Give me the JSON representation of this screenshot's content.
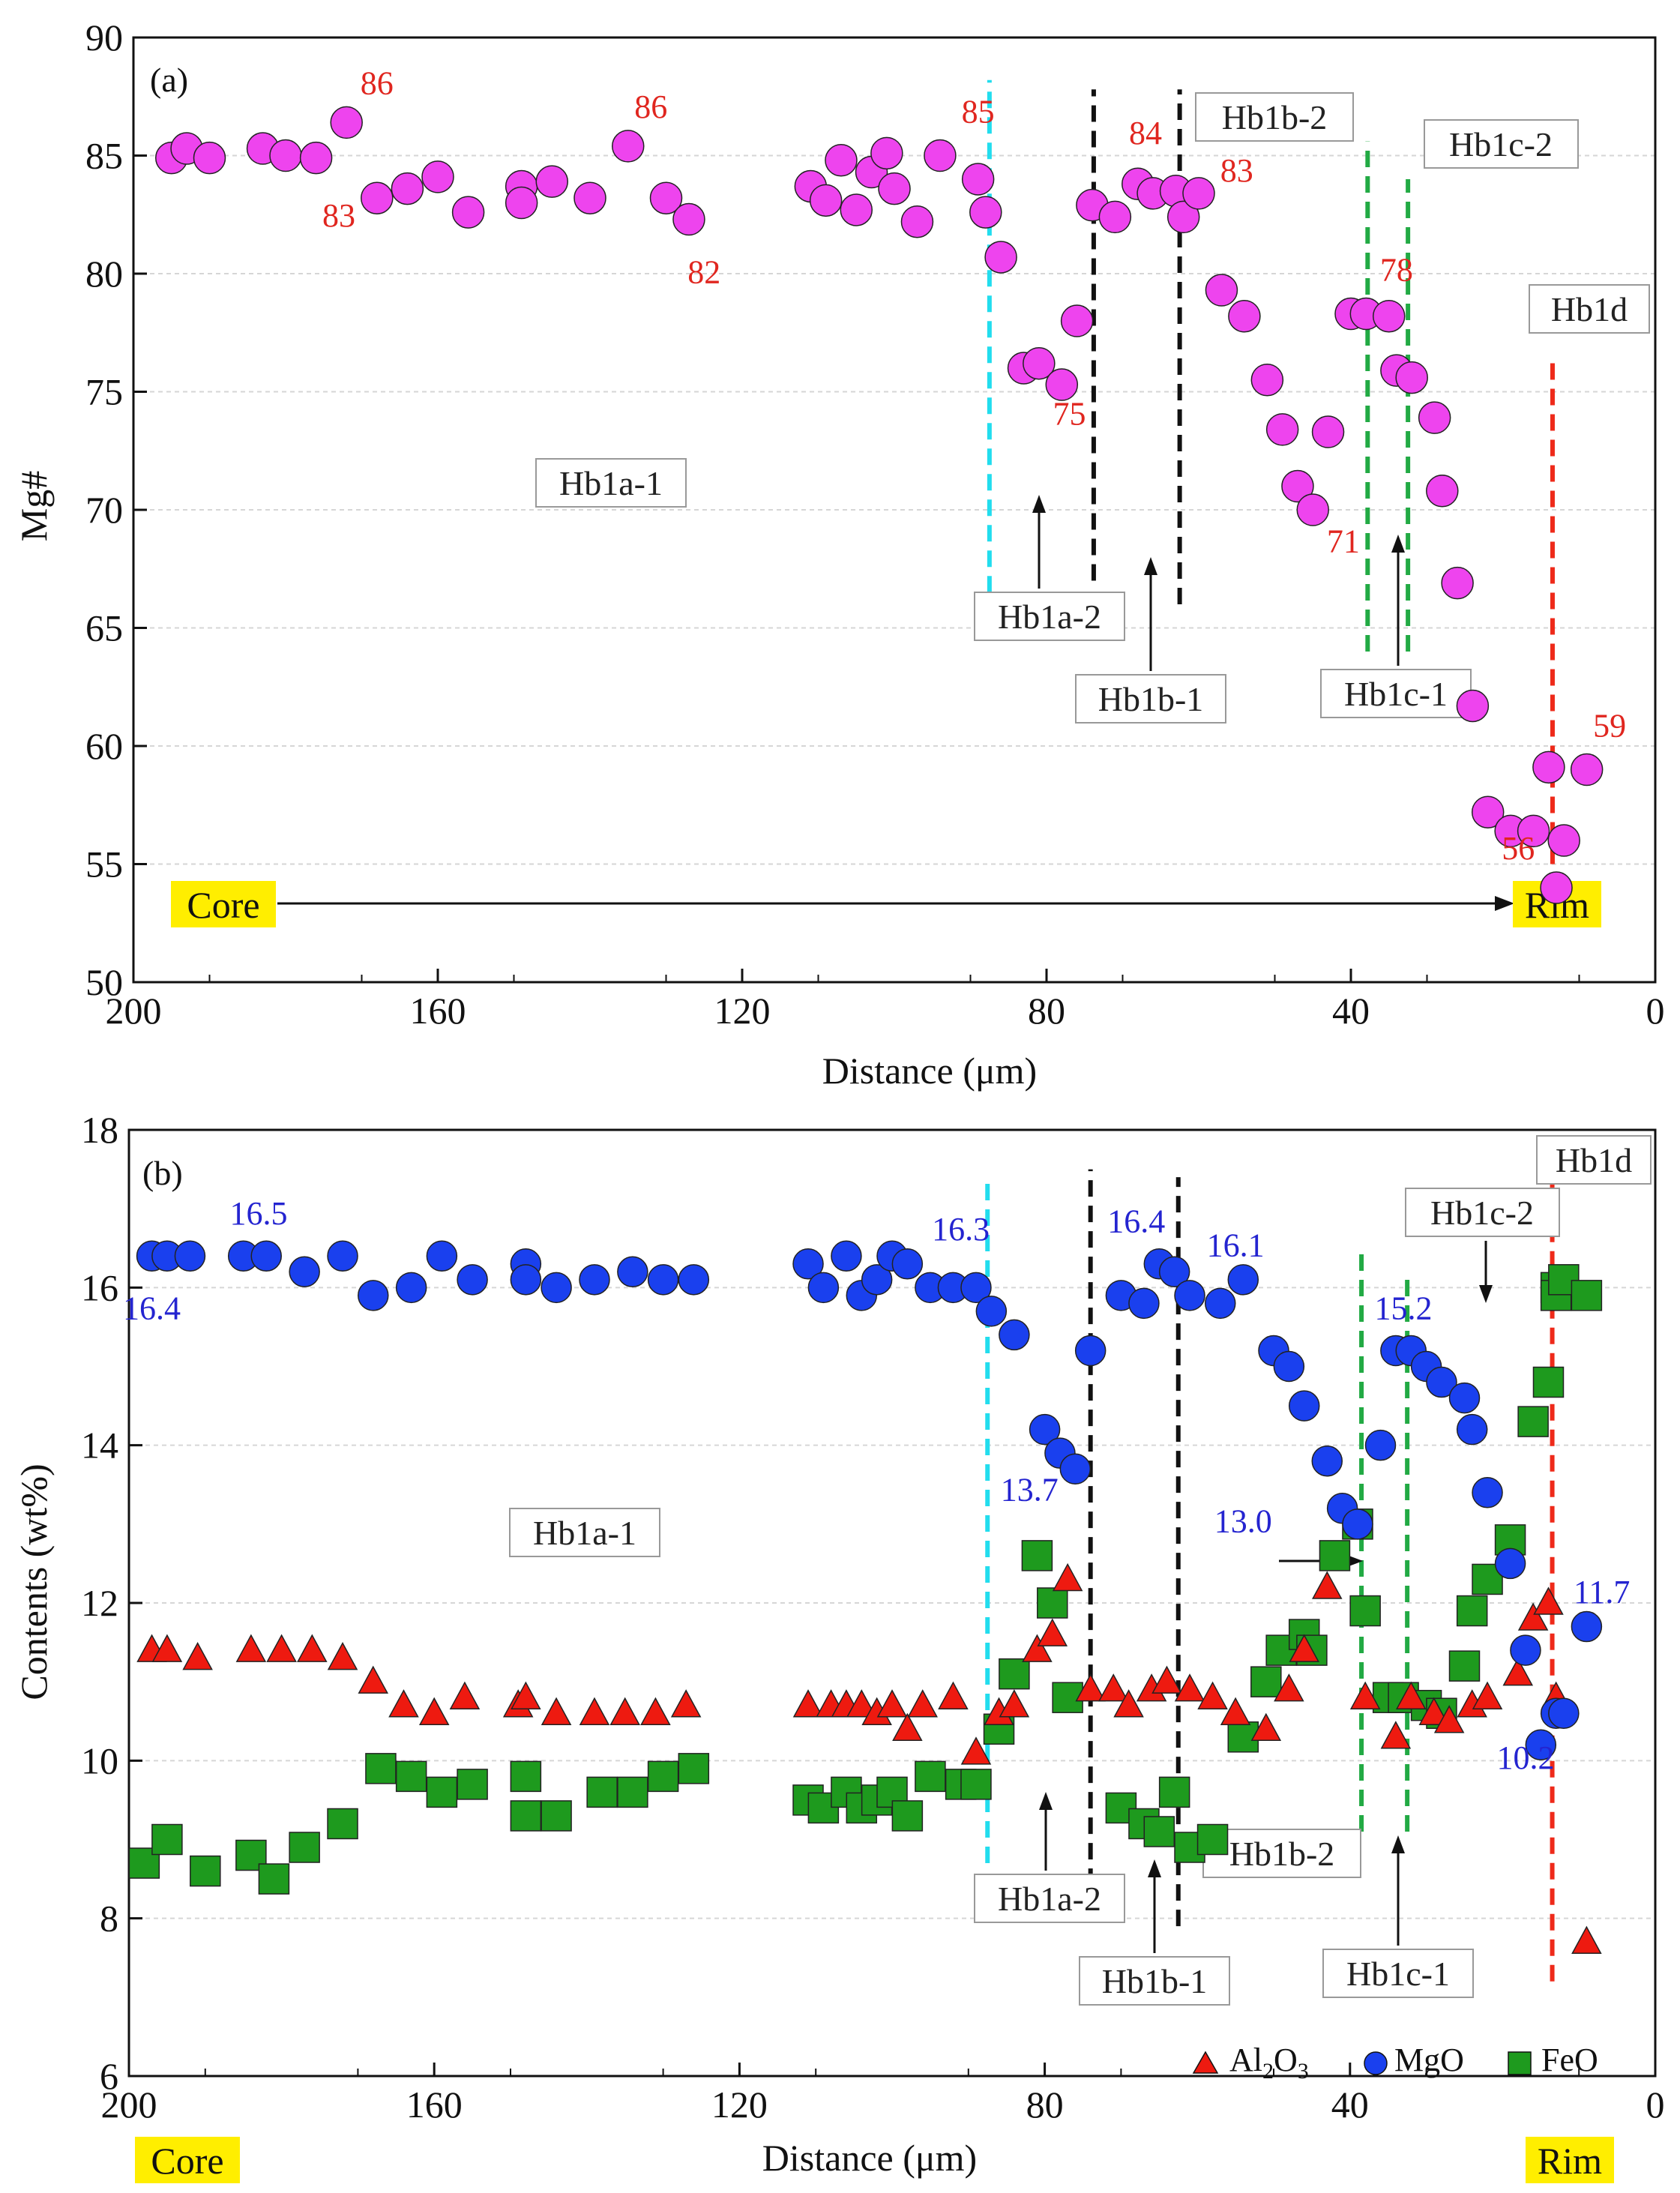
{
  "colors": {
    "mg": "#ee44ee",
    "mgo": "#1a40ee",
    "al2o3": "#ee1a10",
    "feo": "#1e9a1e",
    "highlight": "#ffee00",
    "cyan": "#22ddee",
    "black": "#111111",
    "green": "#22aa44",
    "red": "#ee2a1a",
    "grid": "#d6d6d6"
  },
  "chart_data": [
    {
      "type": "scatter",
      "panel_label": "(a)",
      "xlabel": "Distance (μm)",
      "ylabel": "Mg#",
      "xlim": [
        0,
        200
      ],
      "x_reversed": true,
      "ylim": [
        50,
        90
      ],
      "xticks": [
        200,
        160,
        120,
        80,
        40,
        0
      ],
      "yticks": [
        50,
        55,
        60,
        65,
        70,
        75,
        80,
        85,
        90
      ],
      "grid": true,
      "series": [
        {
          "name": "Mg#",
          "marker": "circle",
          "x": [
            195,
            193,
            190,
            183,
            180,
            176,
            172,
            168,
            164,
            160,
            156,
            149,
            149,
            145,
            140,
            135,
            130,
            127,
            111,
            109,
            107,
            105,
            103,
            101,
            100,
            97,
            94,
            89,
            88,
            86,
            83,
            81,
            78,
            76,
            74,
            71,
            68,
            66,
            63,
            62,
            60,
            57,
            54,
            51,
            49,
            47,
            45,
            43,
            40,
            38,
            35,
            34,
            32,
            29,
            28,
            26,
            24,
            22,
            19,
            16,
            14,
            13,
            12,
            9
          ],
          "y": [
            84.9,
            85.3,
            84.9,
            85.3,
            85.0,
            84.9,
            86.4,
            83.2,
            83.6,
            84.1,
            82.6,
            83.7,
            83.0,
            83.9,
            83.2,
            85.4,
            83.2,
            82.3,
            83.7,
            83.1,
            84.8,
            82.7,
            84.3,
            85.1,
            83.6,
            82.2,
            85.0,
            84.0,
            82.6,
            80.7,
            76.0,
            76.2,
            75.3,
            78.0,
            82.9,
            82.4,
            83.8,
            83.4,
            83.5,
            82.4,
            83.4,
            79.3,
            78.2,
            75.5,
            73.4,
            71.0,
            70.0,
            73.3,
            78.3,
            78.3,
            78.2,
            75.9,
            75.6,
            73.9,
            70.8,
            66.9,
            61.7,
            57.2,
            56.4,
            56.4,
            59.1,
            54.0,
            56.0,
            59.0
          ]
        }
      ],
      "point_labels": [
        {
          "text": "86",
          "x": 168,
          "y": 87.6
        },
        {
          "text": "83",
          "x": 173,
          "y": 82.0
        },
        {
          "text": "86",
          "x": 132,
          "y": 86.6
        },
        {
          "text": "82",
          "x": 125,
          "y": 79.6
        },
        {
          "text": "85",
          "x": 89,
          "y": 86.4
        },
        {
          "text": "84",
          "x": 67,
          "y": 85.5
        },
        {
          "text": "83",
          "x": 55,
          "y": 83.9
        },
        {
          "text": "75",
          "x": 77,
          "y": 73.6
        },
        {
          "text": "78",
          "x": 34,
          "y": 79.7
        },
        {
          "text": "71",
          "x": 41,
          "y": 68.2
        },
        {
          "text": "59",
          "x": 6,
          "y": 60.4
        },
        {
          "text": "56",
          "x": 18,
          "y": 55.2
        }
      ],
      "zone_labels": {
        "hb1a_1": "Hb1a-1",
        "hb1a_2": "Hb1a-2",
        "hb1b_1": "Hb1b-1",
        "hb1b_2": "Hb1b-2",
        "hb1c_1": "Hb1c-1",
        "hb1c_2": "Hb1c-2",
        "hb1d": "Hb1d"
      },
      "core_label": "Core",
      "rim_label": "Rim"
    },
    {
      "type": "scatter",
      "panel_label": "(b)",
      "xlabel": "Distance (μm)",
      "ylabel": "Contents (wt%)",
      "xlim": [
        0,
        200
      ],
      "x_reversed": true,
      "ylim": [
        6,
        18
      ],
      "xticks": [
        200,
        160,
        120,
        80,
        40,
        0
      ],
      "yticks": [
        6,
        8,
        10,
        12,
        14,
        16,
        18
      ],
      "grid": true,
      "series": [
        {
          "name": "Al2O3",
          "legend_label": "Al",
          "legend_sub2": "2",
          "legend_mid": "O",
          "legend_sub3": "3",
          "marker": "triangle",
          "x": [
            197,
            195,
            191,
            184,
            180,
            176,
            172,
            168,
            164,
            160,
            156,
            149,
            148,
            144,
            139,
            135,
            131,
            127,
            111,
            108,
            106,
            104,
            102,
            100,
            98,
            96,
            92,
            89,
            86,
            84,
            81,
            79,
            77,
            74,
            71,
            69,
            66,
            64,
            61,
            58,
            55,
            51,
            48,
            46,
            43,
            38,
            34,
            32,
            29,
            27,
            24,
            22,
            18,
            16,
            14,
            13,
            9
          ],
          "y": [
            11.4,
            11.4,
            11.3,
            11.4,
            11.4,
            11.4,
            11.3,
            11.0,
            10.7,
            10.6,
            10.8,
            10.7,
            10.8,
            10.6,
            10.6,
            10.6,
            10.6,
            10.7,
            10.7,
            10.7,
            10.7,
            10.7,
            10.6,
            10.7,
            10.4,
            10.7,
            10.8,
            10.1,
            10.6,
            10.7,
            11.4,
            11.6,
            12.3,
            10.9,
            10.9,
            10.7,
            10.9,
            11.0,
            10.9,
            10.8,
            10.6,
            10.4,
            10.9,
            11.4,
            12.2,
            10.8,
            10.3,
            10.8,
            10.6,
            10.5,
            10.7,
            10.8,
            11.1,
            11.8,
            12.0,
            10.8,
            7.7
          ]
        },
        {
          "name": "MgO",
          "legend_label": "MgO",
          "marker": "circle",
          "x": [
            197,
            195,
            192,
            185,
            182,
            177,
            172,
            168,
            163,
            159,
            155,
            148,
            148,
            144,
            139,
            134,
            130,
            126,
            111,
            109,
            106,
            104,
            102,
            100,
            98,
            95,
            92,
            89,
            87,
            84,
            80,
            78,
            76,
            74,
            70,
            67,
            65,
            63,
            61,
            57,
            54,
            50,
            48,
            46,
            43,
            41,
            39,
            36,
            34,
            32,
            30,
            28,
            25,
            24,
            22,
            19,
            17,
            15,
            13,
            12,
            9
          ],
          "y": [
            16.4,
            16.4,
            16.4,
            16.4,
            16.4,
            16.2,
            16.4,
            15.9,
            16.0,
            16.4,
            16.1,
            16.3,
            16.1,
            16.0,
            16.1,
            16.2,
            16.1,
            16.1,
            16.3,
            16.0,
            16.4,
            15.9,
            16.1,
            16.4,
            16.3,
            16.0,
            16.0,
            16.0,
            15.7,
            15.4,
            14.2,
            13.9,
            13.7,
            15.2,
            15.9,
            15.8,
            16.3,
            16.2,
            15.9,
            15.8,
            16.1,
            15.2,
            15.0,
            14.5,
            13.8,
            13.2,
            13.0,
            14.0,
            15.2,
            15.2,
            15.0,
            14.8,
            14.6,
            14.2,
            13.4,
            12.5,
            11.4,
            10.2,
            10.6,
            10.6,
            11.7
          ]
        },
        {
          "name": "FeO",
          "legend_label": "FeO",
          "marker": "square",
          "x": [
            198,
            195,
            190,
            184,
            181,
            177,
            172,
            167,
            163,
            159,
            155,
            148,
            148,
            144,
            138,
            134,
            130,
            126,
            111,
            109,
            106,
            104,
            102,
            100,
            98,
            95,
            91,
            89,
            86,
            84,
            81,
            79,
            77,
            70,
            67,
            65,
            63,
            61,
            58,
            54,
            51,
            49,
            46,
            45,
            42,
            39,
            38,
            35,
            33,
            30,
            28,
            25,
            24,
            22,
            19,
            16,
            14,
            13,
            13,
            12,
            9
          ],
          "y": [
            8.7,
            9.0,
            8.6,
            8.8,
            8.5,
            8.9,
            9.2,
            9.9,
            9.8,
            9.6,
            9.7,
            9.8,
            9.3,
            9.3,
            9.6,
            9.6,
            9.8,
            9.9,
            9.5,
            9.4,
            9.6,
            9.4,
            9.5,
            9.6,
            9.3,
            9.8,
            9.7,
            9.7,
            10.4,
            11.1,
            12.6,
            12.0,
            10.8,
            9.4,
            9.2,
            9.1,
            9.6,
            8.9,
            9.0,
            10.3,
            11.0,
            11.4,
            11.6,
            11.4,
            12.6,
            13.0,
            11.9,
            10.8,
            10.8,
            10.7,
            10.6,
            11.2,
            11.9,
            12.3,
            12.8,
            14.3,
            14.8,
            16.0,
            15.9,
            16.1,
            15.9
          ]
        }
      ],
      "point_labels": [
        {
          "text": "16.5",
          "x": 183,
          "y": 16.8
        },
        {
          "text": "16.4",
          "x": 197,
          "y": 15.6
        },
        {
          "text": "16.3",
          "x": 91,
          "y": 16.6
        },
        {
          "text": "16.4",
          "x": 68,
          "y": 16.7
        },
        {
          "text": "16.1",
          "x": 55,
          "y": 16.4
        },
        {
          "text": "15.2",
          "x": 33,
          "y": 15.6
        },
        {
          "text": "13.7",
          "x": 82,
          "y": 13.3
        },
        {
          "text": "13.0",
          "x": 54,
          "y": 12.9
        },
        {
          "text": "11.7",
          "x": 7,
          "y": 12.0
        },
        {
          "text": "10.2",
          "x": 17,
          "y": 9.9
        }
      ],
      "zone_labels": {
        "hb1a_1": "Hb1a-1",
        "hb1a_2": "Hb1a-2",
        "hb1b_1": "Hb1b-1",
        "hb1b_2": "Hb1b-2",
        "hb1c_1": "Hb1c-1",
        "hb1c_2": "Hb1c-2",
        "hb1d": "Hb1d"
      },
      "core_label": "Core",
      "rim_label": "Rim"
    }
  ]
}
